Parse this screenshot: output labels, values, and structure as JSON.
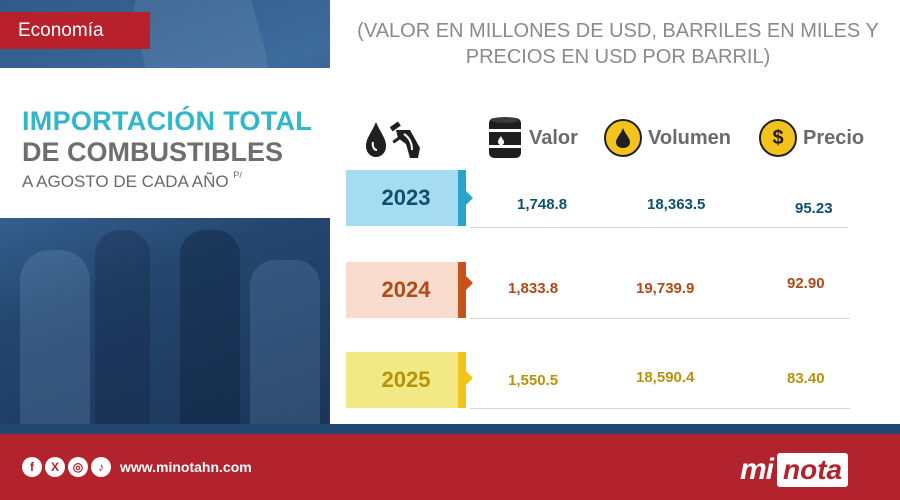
{
  "section": "Economía",
  "units_note": "(VALOR EN MILLONES DE USD, BARRILES EN MILES Y PRECIOS EN USD POR BARRIL)",
  "title": {
    "line1": "IMPORTACIÓN TOTAL",
    "line2": "DE COMBUSTIBLES",
    "line3": "A AGOSTO DE CADA AÑO",
    "note": "P/"
  },
  "columns": [
    {
      "label": "Valor",
      "icon": "oil-barrel-icon"
    },
    {
      "label": "Volumen",
      "icon": "oil-drop-icon"
    },
    {
      "label": "Precio",
      "icon": "dollar-coin-icon"
    }
  ],
  "rows": [
    {
      "year": "2023",
      "valor": "1,748.8",
      "volumen": "18,363.5",
      "precio": "95.23",
      "color": "#0f4f6e",
      "box_color": "#a6dcf2",
      "accent": "#2aa3c8"
    },
    {
      "year": "2024",
      "valor": "1,833.8",
      "volumen": "19,739.9",
      "precio": "92.90",
      "color": "#b04a17",
      "box_color": "#f9dccd",
      "accent": "#c7521b"
    },
    {
      "year": "2025",
      "valor": "1,550.5",
      "volumen": "18,590.4",
      "precio": "83.40",
      "color": "#b8920b",
      "box_color": "#f1ea84",
      "accent": "#f0c51e"
    }
  ],
  "footer": {
    "website": "www.minotahn.com",
    "social": [
      "facebook-icon",
      "x-icon",
      "instagram-icon",
      "tiktok-icon"
    ],
    "logo_mi": "mi",
    "logo_nota": "nota"
  },
  "colors": {
    "brand_red": "#b3232d",
    "navy": "#23486f",
    "title_teal": "#31b7c9",
    "title_gray": "#6e6e6e"
  }
}
